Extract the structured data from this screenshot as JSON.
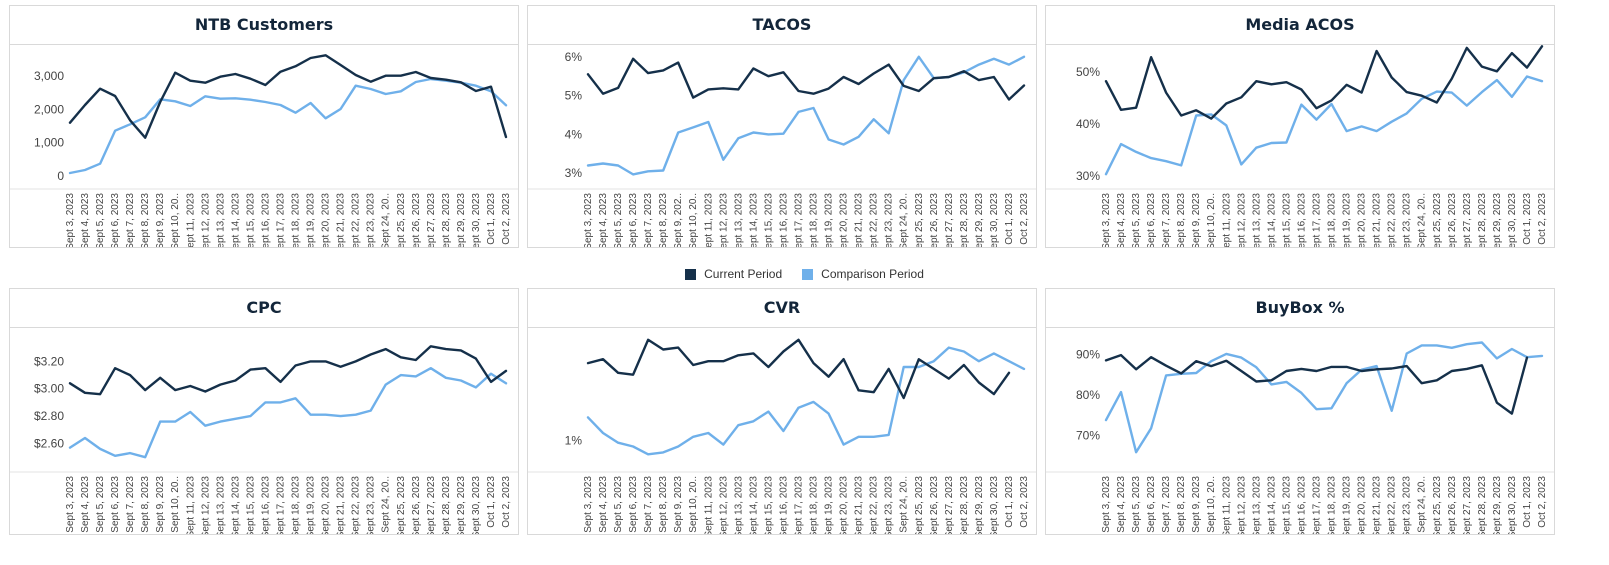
{
  "legend": {
    "current_label": "Current Period",
    "comparison_label": "Comparison Period",
    "current_color": "#15304a",
    "comparison_color": "#6fb0ea"
  },
  "x_labels": [
    "Sept 3, 2023",
    "Sept 4, 2023",
    "Sept 5, 2023",
    "Sept 6, 2023",
    "Sept 7, 2023",
    "Sept 8, 2023",
    "Sept 9, 2023",
    "Sept 10, 20..",
    "Sept 11, 2023",
    "Sept 12, 2023",
    "Sept 13, 2023",
    "Sept 14, 2023",
    "Sept 15, 2023",
    "Sept 16, 2023",
    "Sept 17, 2023",
    "Sept 18, 2023",
    "Sept 19, 2023",
    "Sept 20, 2023",
    "Sept 21, 2023",
    "Sept 22, 2023",
    "Sept 23, 2023",
    "Sept 24, 20..",
    "Sept 25, 2023",
    "Sept 26, 2023",
    "Sept 27, 2023",
    "Sept 28, 2023",
    "Sept 29, 2023",
    "Sept 30, 2023",
    "Oct 1, 2023",
    "Oct 2, 2023"
  ],
  "x_labels_tacos": [
    "Sept 3, 2023",
    "Sept 4, 2023",
    "Sept 5, 2023",
    "Sept 6, 2023",
    "Sept 7, 2023",
    "Sept 8, 2023",
    "Sept 9, 202..",
    "Sept 10, 20..",
    "Sept 11, 2023",
    "Sept 12, 2023",
    "Sept 13, 2023",
    "Sept 14, 2023",
    "Sept 15, 2023",
    "Sept 16, 2023",
    "Sept 17, 2023",
    "Sept 18, 2023",
    "Sept 19, 2023",
    "Sept 20, 2023",
    "Sept 21, 2023",
    "Sept 22, 2023",
    "Sept 23, 2023",
    "Sept 24, 20..",
    "Sept 25, 2023",
    "Sept 26, 2023",
    "Sept 27, 2023",
    "Sept 28, 2023",
    "Sept 29, 2023",
    "Sept 30, 2023",
    "Oct 1, 2023",
    "Oct 2, 2023"
  ],
  "chart_data": [
    {
      "id": "ntb",
      "type": "line",
      "title": "NTB Customers",
      "x_labels_key": "x_labels",
      "ylim": [
        -150,
        3750
      ],
      "yticks": [
        {
          "v": 0,
          "label": "0"
        },
        {
          "v": 1000,
          "label": "1,000"
        },
        {
          "v": 2000,
          "label": "2,000"
        },
        {
          "v": 3000,
          "label": "3,000"
        }
      ],
      "series": [
        {
          "name": "Current Period",
          "values": [
            1600,
            2130,
            2620,
            2400,
            1670,
            1150,
            2220,
            3100,
            2860,
            2800,
            2980,
            3060,
            2920,
            2730,
            3130,
            3290,
            3540,
            3620,
            3330,
            3030,
            2830,
            3010,
            3010,
            3120,
            2940,
            2890,
            2810,
            2550,
            2680,
            1170
          ]
        },
        {
          "name": "Comparison Period",
          "values": [
            90,
            180,
            370,
            1360,
            1550,
            1760,
            2300,
            2240,
            2100,
            2390,
            2320,
            2330,
            2290,
            2220,
            2130,
            1900,
            2190,
            1730,
            2010,
            2710,
            2610,
            2460,
            2540,
            2820,
            2910,
            2860,
            2800,
            2710,
            2540,
            2120
          ]
        }
      ]
    },
    {
      "id": "tacos",
      "type": "line",
      "title": "TACOS",
      "x_labels_key": "x_labels_tacos",
      "ylim": [
        2.8,
        6.15
      ],
      "yticks": [
        {
          "v": 3,
          "label": "3%"
        },
        {
          "v": 4,
          "label": "4%"
        },
        {
          "v": 5,
          "label": "5%"
        },
        {
          "v": 6,
          "label": "6%"
        }
      ],
      "series": [
        {
          "name": "Current Period",
          "values": [
            5.55,
            5.05,
            5.2,
            5.95,
            5.58,
            5.65,
            5.85,
            4.95,
            5.16,
            5.19,
            5.16,
            5.7,
            5.5,
            5.6,
            5.12,
            5.05,
            5.18,
            5.48,
            5.3,
            5.57,
            5.8,
            5.25,
            5.12,
            5.45,
            5.48,
            5.63,
            5.4,
            5.48,
            4.9,
            5.26
          ]
        },
        {
          "name": "Comparison Period",
          "values": [
            3.2,
            3.25,
            3.2,
            2.97,
            3.05,
            3.07,
            4.05,
            4.18,
            4.32,
            3.35,
            3.9,
            4.05,
            4.0,
            4.02,
            4.58,
            4.68,
            3.87,
            3.74,
            3.94,
            4.39,
            4.03,
            5.4,
            6.0,
            5.45,
            5.48,
            5.6,
            5.8,
            5.95,
            5.8,
            6.0
          ]
        }
      ]
    },
    {
      "id": "acos",
      "type": "line",
      "title": "Media ACOS",
      "x_labels_key": "x_labels",
      "ylim": [
        29,
        54
      ],
      "yticks": [
        {
          "v": 30,
          "label": "30%"
        },
        {
          "v": 40,
          "label": "40%"
        },
        {
          "v": 50,
          "label": "50%"
        }
      ],
      "series": [
        {
          "name": "Current Period",
          "values": [
            48.2,
            42.7,
            43.1,
            52.8,
            46.0,
            41.6,
            42.6,
            41.0,
            43.9,
            45.1,
            48.2,
            47.6,
            48.0,
            46.6,
            43.0,
            44.5,
            47.5,
            46.0,
            54.0,
            48.9,
            46.1,
            45.4,
            44.1,
            48.7,
            54.6,
            51.0,
            50.1,
            53.6,
            50.8,
            54.9
          ]
        },
        {
          "name": "Comparison Period",
          "values": [
            30.3,
            36.1,
            34.6,
            33.4,
            32.8,
            32.0,
            41.6,
            41.8,
            39.7,
            32.2,
            35.4,
            36.3,
            36.4,
            43.7,
            40.8,
            43.8,
            38.6,
            39.5,
            38.6,
            40.4,
            42.0,
            44.8,
            46.2,
            46.0,
            43.5,
            46.1,
            48.4,
            45.2,
            49.1,
            48.2
          ]
        }
      ]
    },
    {
      "id": "cpc",
      "type": "line",
      "title": "CPC",
      "x_labels_key": "x_labels",
      "ylim": [
        2.45,
        3.4
      ],
      "yticks": [
        {
          "v": 2.6,
          "label": "$2.60"
        },
        {
          "v": 2.8,
          "label": "$2.80"
        },
        {
          "v": 3.0,
          "label": "$3.00"
        },
        {
          "v": 3.2,
          "label": "$3.20"
        }
      ],
      "series": [
        {
          "name": "Current Period",
          "values": [
            3.04,
            2.97,
            2.96,
            3.15,
            3.1,
            2.99,
            3.08,
            2.99,
            3.02,
            2.98,
            3.03,
            3.06,
            3.14,
            3.15,
            3.05,
            3.17,
            3.2,
            3.2,
            3.16,
            3.2,
            3.25,
            3.29,
            3.23,
            3.21,
            3.31,
            3.29,
            3.28,
            3.22,
            3.05,
            3.13
          ]
        },
        {
          "name": "Comparison Period",
          "values": [
            2.57,
            2.64,
            2.56,
            2.51,
            2.53,
            2.5,
            2.76,
            2.76,
            2.83,
            2.73,
            2.76,
            2.78,
            2.8,
            2.9,
            2.9,
            2.93,
            2.81,
            2.81,
            2.8,
            2.81,
            2.84,
            3.03,
            3.1,
            3.09,
            3.15,
            3.08,
            3.06,
            3.01,
            3.11,
            3.04
          ]
        }
      ]
    },
    {
      "id": "cvr",
      "type": "line",
      "title": "CVR",
      "x_labels_key": "x_labels",
      "ylim": [
        0.88,
        1.55
      ],
      "yticks": [
        {
          "v": 1,
          "label": "1%"
        }
      ],
      "series": [
        {
          "name": "Current Period",
          "values": [
            1.4,
            1.42,
            1.35,
            1.34,
            1.52,
            1.47,
            1.48,
            1.39,
            1.41,
            1.41,
            1.44,
            1.45,
            1.38,
            1.46,
            1.52,
            1.4,
            1.33,
            1.42,
            1.26,
            1.25,
            1.37,
            1.22,
            1.42,
            1.37,
            1.32,
            1.39,
            1.3,
            1.24,
            1.35,
            null
          ]
        },
        {
          "name": "Comparison Period",
          "values": [
            1.12,
            1.04,
            0.99,
            0.97,
            0.93,
            0.94,
            0.97,
            1.02,
            1.04,
            0.98,
            1.08,
            1.1,
            1.15,
            1.05,
            1.17,
            1.2,
            1.14,
            0.98,
            1.02,
            1.02,
            1.03,
            1.38,
            1.38,
            1.41,
            1.48,
            1.46,
            1.41,
            1.45,
            1.41,
            1.37
          ]
        }
      ]
    },
    {
      "id": "buybox",
      "type": "line",
      "title": "BuyBox %",
      "x_labels_key": "x_labels",
      "ylim": [
        63,
        95
      ],
      "yticks": [
        {
          "v": 70,
          "label": "70%"
        },
        {
          "v": 80,
          "label": "80%"
        },
        {
          "v": 90,
          "label": "90%"
        }
      ],
      "series": [
        {
          "name": "Current Period",
          "values": [
            88.5,
            89.8,
            86.3,
            89.3,
            87.2,
            85.3,
            88.3,
            87.1,
            88.4,
            85.9,
            83.3,
            83.6,
            85.9,
            86.4,
            85.9,
            86.9,
            86.9,
            85.9,
            86.3,
            86.5,
            87.1,
            82.9,
            83.6,
            85.9,
            86.4,
            87.3,
            78.1,
            75.4,
            89.2,
            null
          ]
        },
        {
          "name": "Comparison Period",
          "values": [
            73.8,
            80.7,
            65.9,
            71.8,
            84.8,
            85.2,
            85.4,
            88.3,
            90.1,
            89.2,
            86.8,
            82.6,
            83.2,
            80.5,
            76.5,
            76.7,
            82.9,
            86.2,
            87.1,
            76.1,
            90.2,
            92.2,
            92.2,
            91.6,
            92.5,
            92.9,
            89.0,
            91.3,
            89.3,
            89.6
          ]
        }
      ]
    }
  ]
}
